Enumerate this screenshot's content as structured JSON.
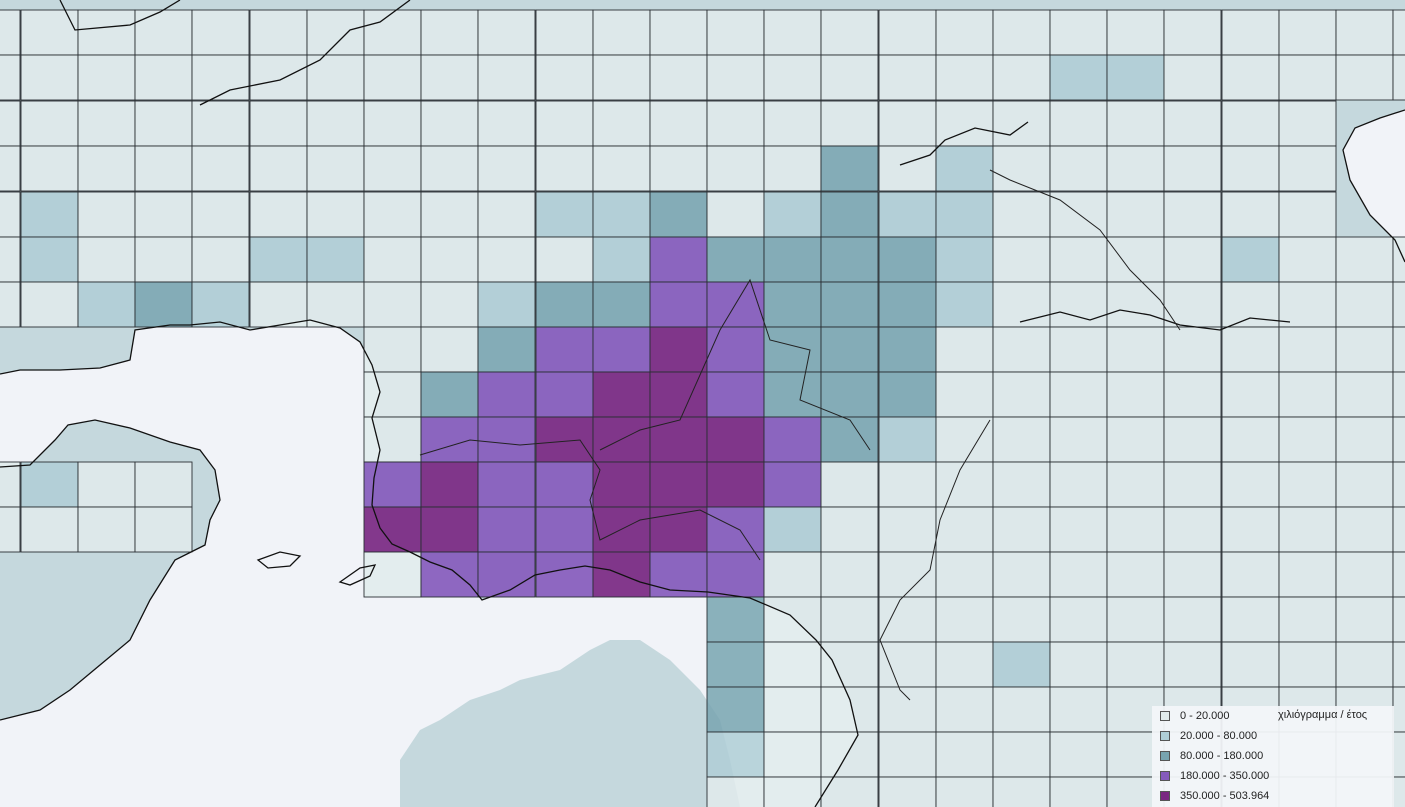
{
  "map": {
    "colors": {
      "water": "#f1f3f8",
      "land_base": "#c5d8dd",
      "coastline": "#111111",
      "grid_line": "#2a2f33"
    }
  },
  "legend": {
    "unit": "χιλιόγραμμα / έτος",
    "classes": [
      {
        "label": "0 - 20.000",
        "color": "#e1ebec"
      },
      {
        "label": "20.000 - 80.000",
        "color": "#afced6"
      },
      {
        "label": "80.000 - 180.000",
        "color": "#78a4b0"
      },
      {
        "label": "180.000 - 350.000",
        "color": "#855bbc"
      },
      {
        "label": "350.000 - 503.964",
        "color": "#7a2882"
      }
    ]
  }
}
